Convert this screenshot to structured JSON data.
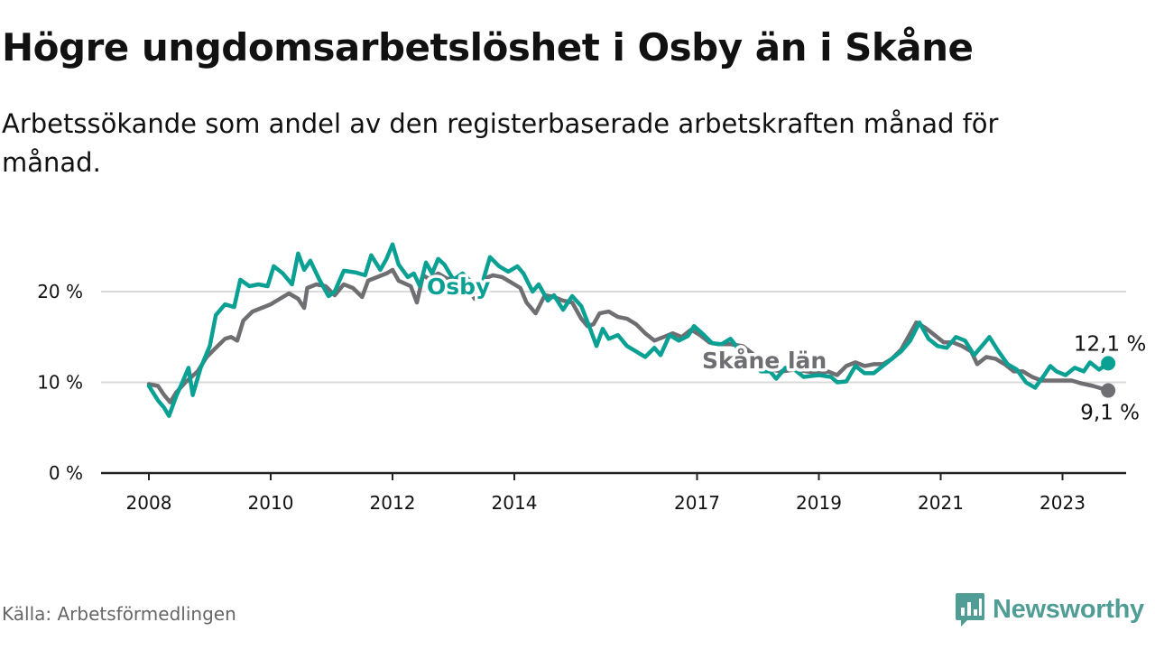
{
  "header": {
    "title": "Högre ungdomsarbetslöshet i Osby än i Skåne",
    "subtitle": "Arbetssökande som andel av den registerbaserade arbetskraften månad för månad."
  },
  "footer": {
    "source": "Källa: Arbetsförmedlingen",
    "brand": "Newsworthy"
  },
  "colors": {
    "osby": "#0aa093",
    "skane": "#6f6e73",
    "grid": "#d9d9d9",
    "axis": "#222222"
  },
  "chart_data": {
    "type": "line",
    "title": "Högre ungdomsarbetslöshet i Osby än i Skåne",
    "subtitle": "Arbetssökande som andel av den registerbaserade arbetskraften månad för månad.",
    "xlabel": "",
    "ylabel": "",
    "ylim": [
      0,
      27
    ],
    "xlim": [
      2007.4,
      2024.5
    ],
    "grid": true,
    "x_ticks": [
      {
        "value": 2008,
        "label": "2008"
      },
      {
        "value": 2010,
        "label": "2010"
      },
      {
        "value": 2012,
        "label": "2012"
      },
      {
        "value": 2014,
        "label": "2014"
      },
      {
        "value": 2017,
        "label": "2017"
      },
      {
        "value": 2019,
        "label": "2019"
      },
      {
        "value": 2021,
        "label": "2021"
      },
      {
        "value": 2023,
        "label": "2023"
      }
    ],
    "y_ticks": [
      {
        "value": 0,
        "label": "0 %"
      },
      {
        "value": 10,
        "label": "10 %"
      },
      {
        "value": 20,
        "label": "20 %"
      }
    ],
    "series": [
      {
        "name": "Osby",
        "color": "#0aa093",
        "end_label": "12,1 %",
        "points": [
          [
            2008.0,
            9.6
          ],
          [
            2008.15,
            8.0
          ],
          [
            2008.25,
            7.2
          ],
          [
            2008.33,
            6.3
          ],
          [
            2008.45,
            8.5
          ],
          [
            2008.55,
            10.0
          ],
          [
            2008.65,
            11.6
          ],
          [
            2008.72,
            8.6
          ],
          [
            2008.85,
            11.6
          ],
          [
            2009.0,
            14.0
          ],
          [
            2009.1,
            17.4
          ],
          [
            2009.25,
            18.6
          ],
          [
            2009.4,
            18.3
          ],
          [
            2009.5,
            21.3
          ],
          [
            2009.65,
            20.6
          ],
          [
            2009.8,
            20.8
          ],
          [
            2009.95,
            20.6
          ],
          [
            2010.05,
            22.8
          ],
          [
            2010.2,
            22.0
          ],
          [
            2010.35,
            20.8
          ],
          [
            2010.45,
            24.2
          ],
          [
            2010.55,
            22.4
          ],
          [
            2010.65,
            23.4
          ],
          [
            2010.8,
            21.3
          ],
          [
            2010.95,
            19.5
          ],
          [
            2011.05,
            20.0
          ],
          [
            2011.2,
            22.3
          ],
          [
            2011.4,
            22.1
          ],
          [
            2011.55,
            21.8
          ],
          [
            2011.65,
            24.0
          ],
          [
            2011.8,
            22.4
          ],
          [
            2011.9,
            23.6
          ],
          [
            2012.0,
            25.2
          ],
          [
            2012.1,
            23.0
          ],
          [
            2012.25,
            21.6
          ],
          [
            2012.35,
            22.0
          ],
          [
            2012.45,
            20.6
          ],
          [
            2012.55,
            23.2
          ],
          [
            2012.65,
            22.0
          ],
          [
            2012.75,
            23.6
          ],
          [
            2012.85,
            23.0
          ],
          [
            2013.0,
            21.3
          ],
          [
            2013.15,
            22.0
          ],
          [
            2013.3,
            21.0
          ],
          [
            2013.45,
            20.4
          ],
          [
            2013.6,
            23.8
          ],
          [
            2013.75,
            22.8
          ],
          [
            2013.9,
            22.2
          ],
          [
            2014.05,
            22.8
          ],
          [
            2014.15,
            22.0
          ],
          [
            2014.3,
            20.0
          ],
          [
            2014.4,
            20.8
          ],
          [
            2014.55,
            19.0
          ],
          [
            2014.65,
            19.6
          ],
          [
            2014.8,
            18.0
          ],
          [
            2014.95,
            19.5
          ],
          [
            2015.1,
            18.4
          ],
          [
            2015.25,
            15.8
          ],
          [
            2015.35,
            14.0
          ],
          [
            2015.45,
            15.9
          ],
          [
            2015.55,
            14.8
          ],
          [
            2015.7,
            15.2
          ],
          [
            2015.85,
            14.0
          ],
          [
            2016.0,
            13.4
          ],
          [
            2016.15,
            12.8
          ],
          [
            2016.3,
            13.8
          ],
          [
            2016.4,
            13.0
          ],
          [
            2016.55,
            15.2
          ],
          [
            2016.7,
            14.6
          ],
          [
            2016.85,
            15.1
          ],
          [
            2016.95,
            16.2
          ],
          [
            2017.1,
            15.3
          ],
          [
            2017.25,
            14.3
          ],
          [
            2017.4,
            14.2
          ],
          [
            2017.55,
            14.8
          ],
          [
            2017.7,
            13.5
          ],
          [
            2017.85,
            12.6
          ],
          [
            2018.05,
            11.2
          ],
          [
            2018.2,
            11.2
          ],
          [
            2018.3,
            10.4
          ],
          [
            2018.45,
            11.6
          ],
          [
            2018.6,
            11.4
          ],
          [
            2018.75,
            10.6
          ],
          [
            2019.0,
            10.8
          ],
          [
            2019.2,
            10.6
          ],
          [
            2019.3,
            10.0
          ],
          [
            2019.45,
            10.1
          ],
          [
            2019.6,
            11.8
          ],
          [
            2019.75,
            11.0
          ],
          [
            2019.9,
            11.0
          ],
          [
            2020.05,
            11.8
          ],
          [
            2020.2,
            12.6
          ],
          [
            2020.35,
            13.4
          ],
          [
            2020.5,
            14.6
          ],
          [
            2020.65,
            16.6
          ],
          [
            2020.8,
            14.8
          ],
          [
            2020.95,
            14.0
          ],
          [
            2021.1,
            13.8
          ],
          [
            2021.25,
            15.0
          ],
          [
            2021.4,
            14.6
          ],
          [
            2021.55,
            13.0
          ],
          [
            2021.7,
            14.2
          ],
          [
            2021.8,
            15.0
          ],
          [
            2021.95,
            13.4
          ],
          [
            2022.1,
            12.0
          ],
          [
            2022.25,
            11.4
          ],
          [
            2022.4,
            10.0
          ],
          [
            2022.55,
            9.4
          ],
          [
            2022.7,
            10.8
          ],
          [
            2022.8,
            11.8
          ],
          [
            2022.9,
            11.2
          ],
          [
            2023.05,
            10.8
          ],
          [
            2023.2,
            11.6
          ],
          [
            2023.35,
            11.2
          ],
          [
            2023.45,
            12.2
          ],
          [
            2023.6,
            11.4
          ],
          [
            2023.75,
            12.1
          ]
        ]
      },
      {
        "name": "Skåne län",
        "color": "#6f6e73",
        "end_label": "9,1 %",
        "points": [
          [
            2008.0,
            9.8
          ],
          [
            2008.15,
            9.6
          ],
          [
            2008.25,
            8.6
          ],
          [
            2008.35,
            7.8
          ],
          [
            2008.45,
            8.9
          ],
          [
            2008.6,
            10.0
          ],
          [
            2008.8,
            11.2
          ],
          [
            2008.95,
            12.8
          ],
          [
            2009.1,
            13.8
          ],
          [
            2009.25,
            14.8
          ],
          [
            2009.35,
            15.0
          ],
          [
            2009.45,
            14.6
          ],
          [
            2009.55,
            16.8
          ],
          [
            2009.7,
            17.8
          ],
          [
            2009.85,
            18.2
          ],
          [
            2010.0,
            18.6
          ],
          [
            2010.15,
            19.2
          ],
          [
            2010.3,
            19.8
          ],
          [
            2010.45,
            19.2
          ],
          [
            2010.55,
            18.2
          ],
          [
            2010.6,
            20.4
          ],
          [
            2010.75,
            20.8
          ],
          [
            2010.9,
            20.6
          ],
          [
            2011.05,
            19.6
          ],
          [
            2011.2,
            20.8
          ],
          [
            2011.35,
            20.4
          ],
          [
            2011.5,
            19.4
          ],
          [
            2011.6,
            21.2
          ],
          [
            2011.75,
            21.6
          ],
          [
            2011.9,
            22.0
          ],
          [
            2012.0,
            22.4
          ],
          [
            2012.1,
            21.2
          ],
          [
            2012.3,
            20.6
          ],
          [
            2012.4,
            18.8
          ],
          [
            2012.5,
            21.8
          ],
          [
            2012.6,
            21.4
          ],
          [
            2012.75,
            22.0
          ],
          [
            2012.9,
            21.4
          ],
          [
            2013.05,
            21.4
          ],
          [
            2013.2,
            20.8
          ],
          [
            2013.35,
            19.2
          ],
          [
            2013.5,
            21.4
          ],
          [
            2013.65,
            21.8
          ],
          [
            2013.8,
            21.6
          ],
          [
            2013.95,
            21.0
          ],
          [
            2014.1,
            20.4
          ],
          [
            2014.2,
            18.8
          ],
          [
            2014.35,
            17.6
          ],
          [
            2014.5,
            19.6
          ],
          [
            2014.65,
            19.4
          ],
          [
            2014.8,
            19.0
          ],
          [
            2014.95,
            18.8
          ],
          [
            2015.1,
            17.0
          ],
          [
            2015.2,
            16.2
          ],
          [
            2015.3,
            16.4
          ],
          [
            2015.4,
            17.6
          ],
          [
            2015.55,
            17.8
          ],
          [
            2015.7,
            17.2
          ],
          [
            2015.85,
            17.0
          ],
          [
            2016.0,
            16.4
          ],
          [
            2016.15,
            15.4
          ],
          [
            2016.3,
            14.6
          ],
          [
            2016.45,
            15.0
          ],
          [
            2016.6,
            15.4
          ],
          [
            2016.75,
            15.0
          ],
          [
            2016.9,
            15.8
          ],
          [
            2017.05,
            15.2
          ],
          [
            2017.2,
            14.4
          ],
          [
            2017.35,
            14.2
          ],
          [
            2017.55,
            14.2
          ],
          [
            2017.75,
            14.0
          ],
          [
            2017.9,
            13.2
          ],
          [
            2018.05,
            12.4
          ],
          [
            2018.2,
            11.4
          ],
          [
            2018.4,
            11.2
          ],
          [
            2018.6,
            11.4
          ],
          [
            2018.8,
            11.2
          ],
          [
            2019.0,
            11.0
          ],
          [
            2019.15,
            11.2
          ],
          [
            2019.3,
            10.8
          ],
          [
            2019.45,
            11.8
          ],
          [
            2019.6,
            12.2
          ],
          [
            2019.75,
            11.8
          ],
          [
            2019.9,
            12.0
          ],
          [
            2020.05,
            12.0
          ],
          [
            2020.2,
            12.6
          ],
          [
            2020.35,
            13.6
          ],
          [
            2020.5,
            15.4
          ],
          [
            2020.6,
            16.6
          ],
          [
            2020.75,
            16.0
          ],
          [
            2020.9,
            15.2
          ],
          [
            2021.05,
            14.4
          ],
          [
            2021.2,
            14.4
          ],
          [
            2021.35,
            14.0
          ],
          [
            2021.5,
            13.4
          ],
          [
            2021.6,
            12.0
          ],
          [
            2021.75,
            12.8
          ],
          [
            2021.9,
            12.6
          ],
          [
            2022.05,
            12.0
          ],
          [
            2022.2,
            11.2
          ],
          [
            2022.35,
            11.2
          ],
          [
            2022.5,
            10.6
          ],
          [
            2022.65,
            10.2
          ],
          [
            2022.8,
            10.2
          ],
          [
            2023.0,
            10.2
          ],
          [
            2023.15,
            10.2
          ],
          [
            2023.3,
            9.9
          ],
          [
            2023.5,
            9.6
          ],
          [
            2023.75,
            9.1
          ]
        ]
      }
    ]
  }
}
